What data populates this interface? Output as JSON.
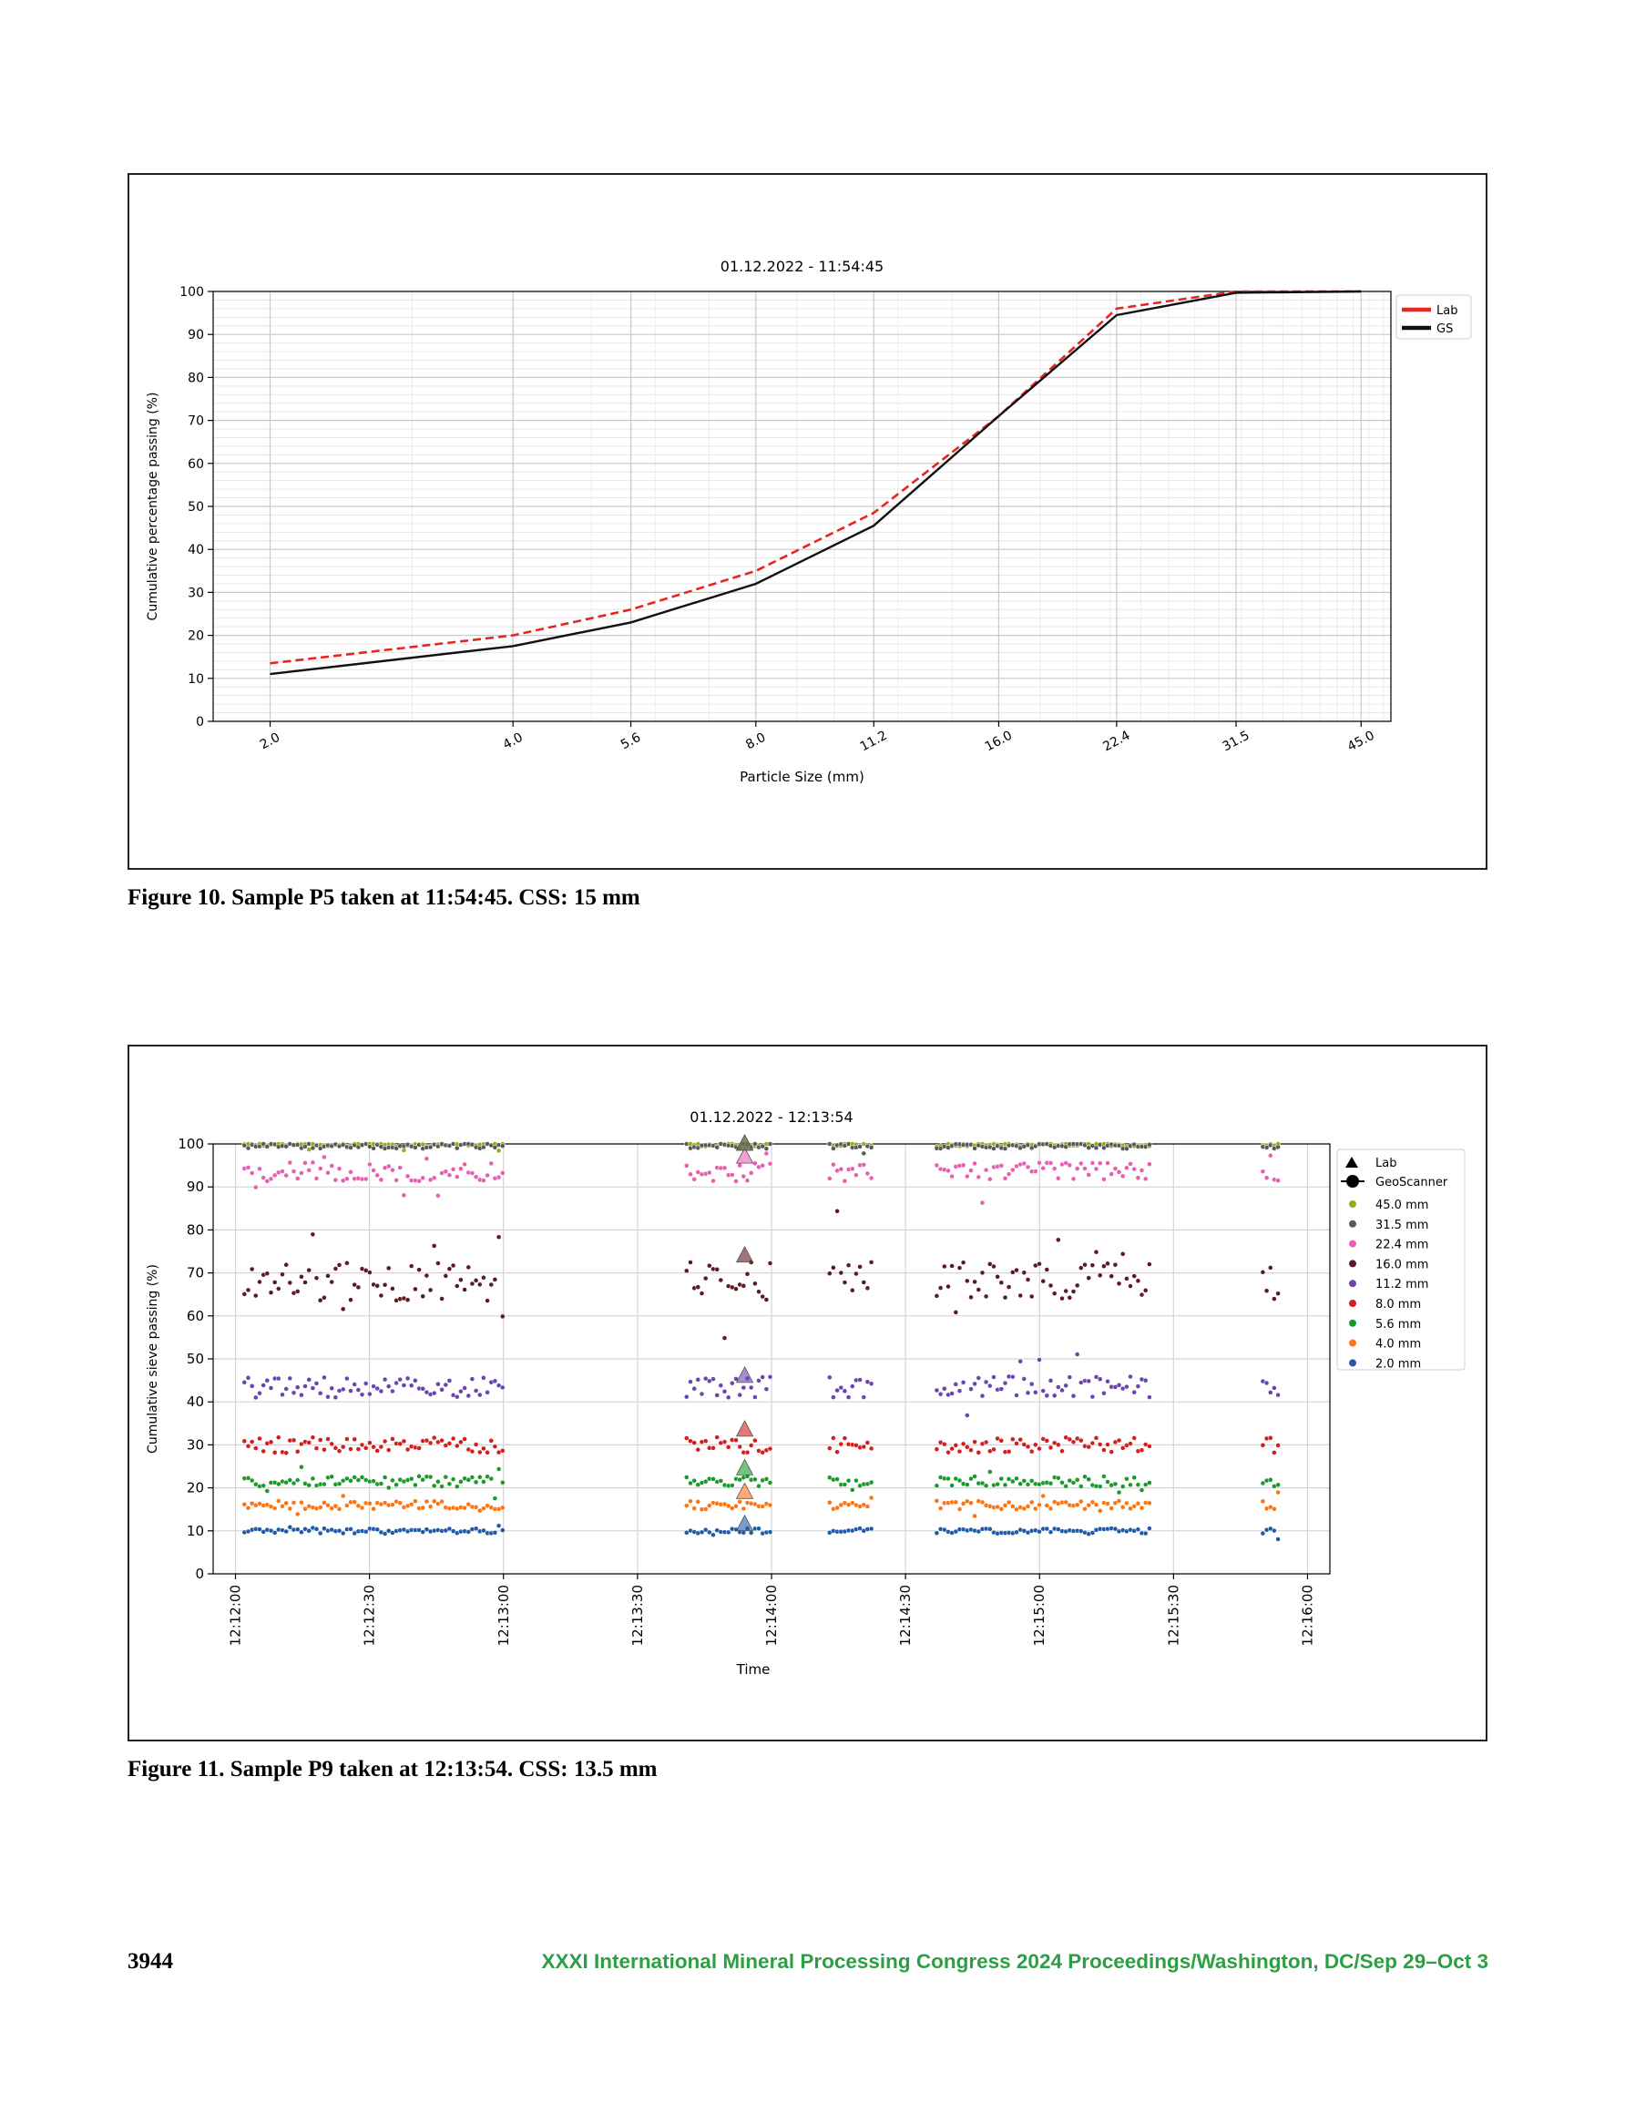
{
  "figure10": {
    "caption": "Figure 10.  Sample P5 taken at 11:54:45. CSS: 15 mm",
    "chart_data": {
      "type": "line",
      "title": "01.12.2022 - 11:54:45",
      "xlabel": "Particle Size (mm)",
      "ylabel": "Cumulative percentage passing (%)",
      "x_scale": "log",
      "x": [
        2.0,
        4.0,
        5.6,
        8.0,
        11.2,
        16.0,
        22.4,
        31.5,
        45.0
      ],
      "x_tick_labels": [
        "2.0",
        "4.0",
        "5.6",
        "8.0",
        "11.2",
        "16.0",
        "22.4",
        "31.5",
        "45.0"
      ],
      "y_ticks": [
        0,
        10,
        20,
        30,
        40,
        50,
        60,
        70,
        80,
        90,
        100
      ],
      "ylim": [
        0,
        100
      ],
      "grid": true,
      "legend_position": "outside-right-top",
      "series": [
        {
          "name": "Lab",
          "color": "#e8261f",
          "style": "dashed",
          "values": [
            13.5,
            20.0,
            26.0,
            35.0,
            48.5,
            71.0,
            96.0,
            100.0,
            100.0
          ]
        },
        {
          "name": "GS",
          "color": "#111111",
          "style": "solid",
          "values": [
            11.0,
            17.5,
            23.0,
            32.0,
            45.5,
            71.0,
            94.5,
            99.7,
            100.0
          ]
        }
      ]
    }
  },
  "figure11": {
    "caption": "Figure 11.  Sample P9 taken at 12:13:54. CSS: 13.5 mm",
    "chart_data": {
      "type": "scatter",
      "title": "01.12.2022 - 12:13:54",
      "xlabel": "Time",
      "ylabel": "Cumulative sieve passing (%)",
      "x_tick_labels": [
        "12:12:00",
        "12:12:30",
        "12:13:00",
        "12:13:30",
        "12:14:00",
        "12:14:30",
        "12:15:00",
        "12:15:30",
        "12:16:00"
      ],
      "y_ticks": [
        0,
        10,
        20,
        30,
        40,
        50,
        60,
        70,
        80,
        90,
        100
      ],
      "ylim": [
        0,
        100
      ],
      "grid": true,
      "legend_position": "outside-right-top",
      "legend_markers": [
        "Lab",
        "GeoScanner"
      ],
      "lab_time": "12:13:54",
      "geoscanner_time_segments": [
        [
          "12:12:02",
          "12:13:00"
        ],
        [
          "12:13:41",
          "12:14:00"
        ],
        [
          "12:14:13",
          "12:14:23"
        ],
        [
          "12:14:37",
          "12:15:25"
        ],
        [
          "12:15:50",
          "12:15:54"
        ]
      ],
      "series": [
        {
          "name": "45.0 mm",
          "color": "#9aaa1c",
          "geoscanner_typical": 99.8,
          "lab": 100
        },
        {
          "name": "31.5 mm",
          "color": "#5a5a5a",
          "geoscanner_typical": 99.5,
          "lab": 100
        },
        {
          "name": "22.4 mm",
          "color": "#e75fb2",
          "geoscanner_typical": 93.5,
          "lab": 97
        },
        {
          "name": "16.0 mm",
          "color": "#5c1a22",
          "geoscanner_typical": 68.0,
          "lab": 74
        },
        {
          "name": "11.2 mm",
          "color": "#6a45b0",
          "geoscanner_typical": 43.5,
          "lab": 46
        },
        {
          "name": "8.0 mm",
          "color": "#d51d1d",
          "geoscanner_typical": 30.0,
          "lab": 33.5
        },
        {
          "name": "5.6 mm",
          "color": "#1a9a2a",
          "geoscanner_typical": 21.5,
          "lab": 24.5
        },
        {
          "name": "4.0 mm",
          "color": "#ff7410",
          "geoscanner_typical": 16.0,
          "lab": 19
        },
        {
          "name": "2.0 mm",
          "color": "#1f5aa8",
          "geoscanner_typical": 10.0,
          "lab": 11.5
        }
      ]
    }
  },
  "footer": {
    "page_number": "3944",
    "proceedings": "XXXI International Mineral Processing Congress 2024 Proceedings/Washington, DC/Sep 29–Oct 3"
  }
}
